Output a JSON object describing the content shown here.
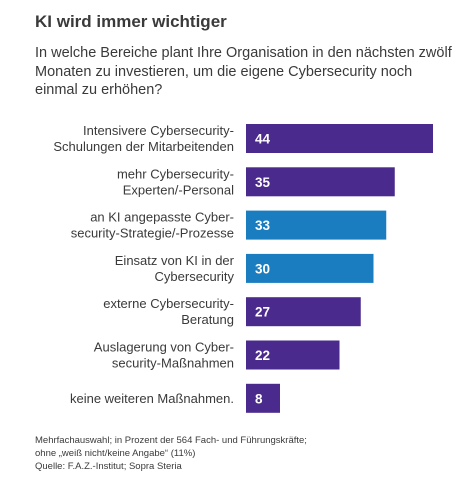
{
  "header": {
    "title": "KI wird immer wichtiger",
    "subtitle": "In welche Bereiche plant Ihre Organisation in den nächsten zwölf Monaten zu investieren, um die eigene Cybersecurity noch einmal zu erhöhen?"
  },
  "chart_data": {
    "type": "bar",
    "orientation": "horizontal",
    "title": "KI wird immer wichtiger",
    "subtitle": "In welche Bereiche plant Ihre Organisation in den nächsten zwölf Monaten zu investieren, um die eigene Cybersecurity noch einmal zu erhöhen?",
    "xlabel": "",
    "ylabel": "",
    "xlim": [
      0,
      44
    ],
    "grid": false,
    "legend": "none",
    "categories": [
      [
        "Intensivere Cybersecurity-",
        "Schulungen der Mitarbeitenden"
      ],
      [
        "mehr Cybersecurity-",
        "Experten/-Personal"
      ],
      [
        "an KI angepasste Cyber-",
        "security-Strategie/-Prozesse"
      ],
      [
        "Einsatz von KI in der",
        "Cybersecurity"
      ],
      [
        "externe Cybersecurity-",
        "Beratung"
      ],
      [
        "Auslagerung von Cyber-",
        "security-Maßnahmen"
      ],
      [
        "keine weiteren Maßnahmen."
      ]
    ],
    "values": [
      44,
      35,
      33,
      30,
      27,
      22,
      8
    ],
    "bar_colors": [
      "#4a2a8c",
      "#4a2a8c",
      "#1a7dc0",
      "#1a7dc0",
      "#4a2a8c",
      "#4a2a8c",
      "#4a2a8c"
    ]
  },
  "colors": {
    "purple": "#4a2a8c",
    "blue": "#1a7dc0",
    "text": "#3a3a3a"
  },
  "footnote": {
    "line1": "Mehrfachauswahl; in Prozent der 564 Fach- und Führungskräfte;",
    "line2": "ohne „weiß nicht/keine Angabe“ (11%)",
    "line3": "Quelle: F.A.Z.-Institut; Sopra Steria"
  }
}
